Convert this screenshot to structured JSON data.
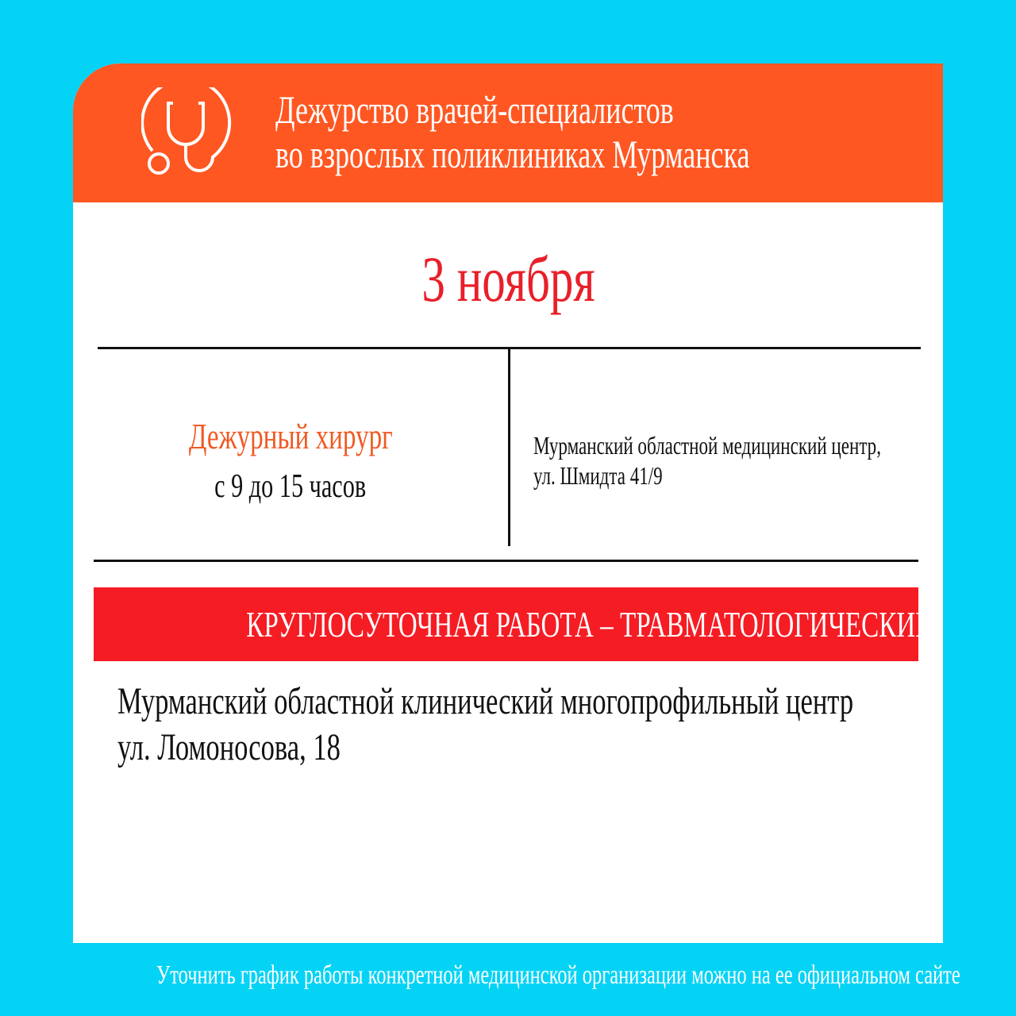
{
  "header": {
    "title_line1": "Дежурство врачей-специалистов",
    "title_line2": "во взрослых поликлиниках Мурманска",
    "icon": "stethoscope-icon"
  },
  "date": "3 ноября",
  "duty": {
    "title": "Дежурный хирург",
    "hours": "с 9 до 15 часов",
    "address_line1": "Мурманский областной медицинский центр,",
    "address_line2": "ул. Шмидта 41/9"
  },
  "banner": "КРУГЛОСУТОЧНАЯ РАБОТА – ТРАВМАТОЛОГИЧЕСКИЙ ПУНКТ",
  "trauma": {
    "address_line1": "Мурманский областной клинический многопрофильный центр",
    "address_line2": "ул. Ломоносова, 18"
  },
  "footer": "Уточнить график работы конкретной медицинской организации можно на ее официальном сайте",
  "colors": {
    "background": "#05d3f6",
    "header": "#ff5722",
    "accent_red": "#e8202a",
    "banner": "#f51c24",
    "duty_title": "#f05a23"
  }
}
